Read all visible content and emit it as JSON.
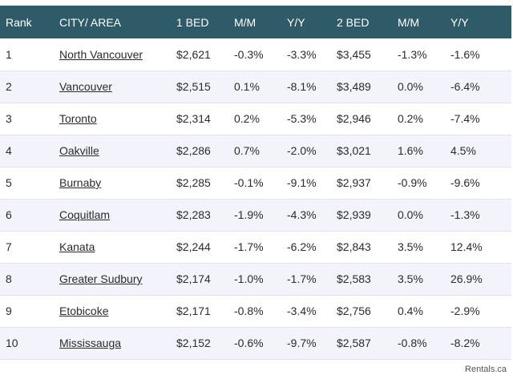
{
  "headers": [
    "Rank",
    "CITY/ AREA",
    "1 BED",
    "M/M",
    "Y/Y",
    "2 BED",
    "M/M",
    "Y/Y"
  ],
  "rows": [
    {
      "rank": "1",
      "city": "North Vancouver",
      "bed1": "$2,621",
      "bed1_mm": "-0.3%",
      "bed1_yy": "-3.3%",
      "bed2": "$3,455",
      "bed2_mm": "-1.3%",
      "bed2_yy": "-1.6%"
    },
    {
      "rank": "2",
      "city": "Vancouver",
      "bed1": "$2,515",
      "bed1_mm": "0.1%",
      "bed1_yy": "-8.1%",
      "bed2": "$3,489",
      "bed2_mm": "0.0%",
      "bed2_yy": "-6.4%"
    },
    {
      "rank": "3",
      "city": "Toronto",
      "bed1": "$2,314",
      "bed1_mm": "0.2%",
      "bed1_yy": "-5.3%",
      "bed2": "$2,946",
      "bed2_mm": "0.2%",
      "bed2_yy": "-7.4%"
    },
    {
      "rank": "4",
      "city": "Oakville",
      "bed1": "$2,286",
      "bed1_mm": "0.7%",
      "bed1_yy": "-2.0%",
      "bed2": "$3,021",
      "bed2_mm": "1.6%",
      "bed2_yy": "4.5%"
    },
    {
      "rank": "5",
      "city": "Burnaby",
      "bed1": "$2,285",
      "bed1_mm": "-0.1%",
      "bed1_yy": "-9.1%",
      "bed2": "$2,937",
      "bed2_mm": "-0.9%",
      "bed2_yy": "-9.6%"
    },
    {
      "rank": "6",
      "city": "Coquitlam",
      "bed1": "$2,283",
      "bed1_mm": "-1.9%",
      "bed1_yy": "-4.3%",
      "bed2": "$2,939",
      "bed2_mm": "0.0%",
      "bed2_yy": "-1.3%"
    },
    {
      "rank": "7",
      "city": "Kanata",
      "bed1": "$2,244",
      "bed1_mm": "-1.7%",
      "bed1_yy": "-6.2%",
      "bed2": "$2,843",
      "bed2_mm": "3.5%",
      "bed2_yy": "12.4%"
    },
    {
      "rank": "8",
      "city": "Greater Sudbury",
      "bed1": "$2,174",
      "bed1_mm": "-1.0%",
      "bed1_yy": "-1.7%",
      "bed2": "$2,583",
      "bed2_mm": "3.5%",
      "bed2_yy": "26.9%"
    },
    {
      "rank": "9",
      "city": "Etobicoke",
      "bed1": "$2,171",
      "bed1_mm": "-0.8%",
      "bed1_yy": "-3.4%",
      "bed2": "$2,756",
      "bed2_mm": "0.4%",
      "bed2_yy": "-2.9%"
    },
    {
      "rank": "10",
      "city": "Mississauga",
      "bed1": "$2,152",
      "bed1_mm": "-0.6%",
      "bed1_yy": "-9.7%",
      "bed2": "$2,587",
      "bed2_mm": "-0.8%",
      "bed2_yy": "-8.2%"
    }
  ],
  "source": "Rentals.ca",
  "colors": {
    "header_bg": "#2f5a67",
    "stripe": "#f3f3fb",
    "text": "#2b2b2b"
  }
}
